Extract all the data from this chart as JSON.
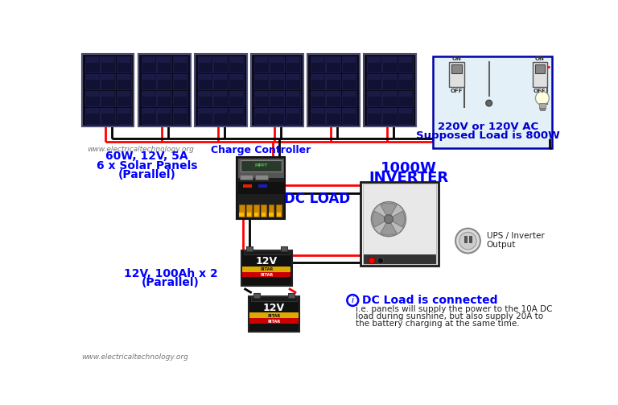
{
  "bg_color": "#ffffff",
  "watermark_top": "www.electricaltechnology.org",
  "watermark_bottom": "www.electricaltechnology.org",
  "solar_label_line1": "60W, 12V, 5A",
  "solar_label_line2": "6 x Solar Panels",
  "solar_label_line3": "(Parallel)",
  "battery_label_line1": "12V, 100Ah x 2",
  "battery_label_line2": "(Parallel)",
  "charge_controller_label": "Charge Controller",
  "dc_load_label": "DC LOAD",
  "inverter_label_line1": "1000W",
  "inverter_label_line2": "INVERTER",
  "ac_label_line1": "220V or 120V AC",
  "ac_label_line2": "Supposed Load is 800W",
  "ups_label_line1": "UPS / Inverter",
  "ups_label_line2": "Output",
  "info_title": "DC Load is connected",
  "info_text_line1": "i.e. panels will supply the power to the 10A DC",
  "info_text_line2": "load during sunshine, but also supply 20A to",
  "info_text_line3": "the battery charging at the same time.",
  "blue_color": "#0000ff",
  "dark_blue": "#0000cc",
  "red_color": "#ff0000",
  "black_color": "#000000",
  "gray_color": "#888888"
}
